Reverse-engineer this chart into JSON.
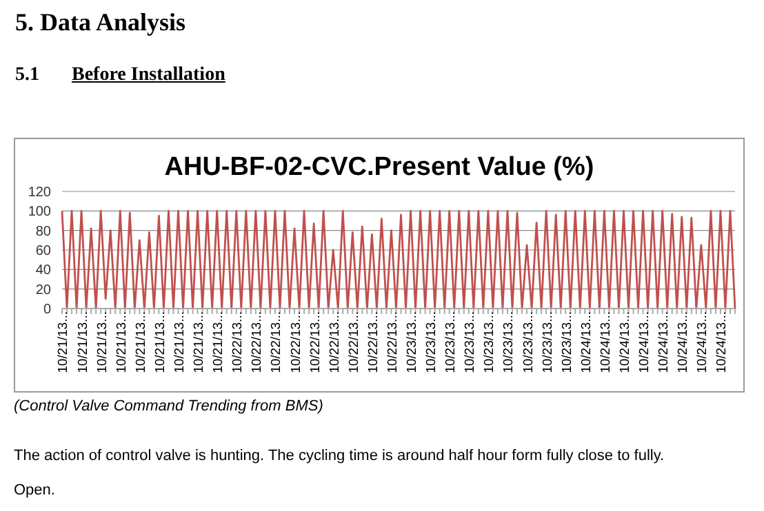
{
  "chart_data": {
    "type": "line",
    "title": "AHU-BF-02-CVC.Present Value (%)",
    "annotations": [
      "5. Data Analysis",
      "5.1",
      "Before Installation",
      "(Control Valve Command Trending from BMS)",
      "The action of control valve is hunting. The cycling time is around half hour form fully close to fully.",
      "Open."
    ],
    "categories": [
      "10/21/13...",
      null,
      null,
      null,
      "10/21/13...",
      null,
      null,
      null,
      "10/21/13...",
      null,
      null,
      null,
      "10/21/13...",
      null,
      null,
      null,
      "10/21/13...",
      null,
      null,
      null,
      "10/21/13...",
      null,
      null,
      null,
      "10/21/13...",
      null,
      null,
      null,
      "10/21/13...",
      null,
      null,
      null,
      "10/21/13...",
      null,
      null,
      null,
      "10/22/13...",
      null,
      null,
      null,
      "10/22/13...",
      null,
      null,
      null,
      "10/22/13...",
      null,
      null,
      null,
      "10/22/13...",
      null,
      null,
      null,
      "10/22/13...",
      null,
      null,
      null,
      "10/22/13...",
      null,
      null,
      null,
      "10/22/13...",
      null,
      null,
      null,
      "10/22/13...",
      null,
      null,
      null,
      "10/22/13...",
      null,
      null,
      null,
      "10/23/13...",
      null,
      null,
      null,
      "10/23/13...",
      null,
      null,
      null,
      "10/23/13...",
      null,
      null,
      null,
      "10/23/13...",
      null,
      null,
      null,
      "10/23/13...",
      null,
      null,
      null,
      "10/23/13...",
      null,
      null,
      null,
      "10/23/13...",
      null,
      null,
      null,
      "10/23/13...",
      null,
      null,
      null,
      "10/23/13...",
      null,
      null,
      null,
      "10/24/13...",
      null,
      null,
      null,
      "10/24/13...",
      null,
      null,
      null,
      "10/24/13...",
      null,
      null,
      null,
      "10/24/13...",
      null,
      null,
      null,
      "10/24/13...",
      null,
      null,
      null,
      "10/24/13...",
      null,
      null,
      null,
      "10/24/13...",
      null,
      null,
      null,
      "10/24/13...",
      null,
      null,
      null
    ],
    "series": [
      {
        "color": "#c0504d",
        "values": [
          100,
          0,
          100,
          0,
          100,
          0,
          82,
          0,
          100,
          10,
          80,
          0,
          100,
          0,
          98,
          0,
          70,
          0,
          78,
          0,
          95,
          0,
          100,
          0,
          100,
          0,
          100,
          0,
          100,
          0,
          100,
          0,
          100,
          0,
          100,
          0,
          100,
          0,
          100,
          0,
          100,
          0,
          100,
          0,
          100,
          0,
          100,
          0,
          82,
          0,
          100,
          0,
          87,
          0,
          100,
          0,
          60,
          0,
          100,
          0,
          78,
          0,
          84,
          0,
          76,
          0,
          92,
          0,
          80,
          0,
          96,
          0,
          100,
          0,
          100,
          0,
          100,
          0,
          100,
          0,
          100,
          0,
          100,
          0,
          100,
          0,
          100,
          0,
          100,
          0,
          100,
          0,
          100,
          0,
          98,
          0,
          65,
          0,
          88,
          0,
          100,
          0,
          96,
          0,
          100,
          0,
          100,
          0,
          100,
          0,
          100,
          0,
          100,
          0,
          100,
          0,
          100,
          0,
          100,
          0,
          100,
          0,
          100,
          0,
          100,
          0,
          97,
          0,
          94,
          0,
          93,
          0,
          65,
          0,
          100,
          0,
          100,
          0,
          100,
          0
        ]
      }
    ],
    "ylim": [
      0,
      120
    ],
    "yticks": [
      0,
      20,
      40,
      60,
      80,
      100,
      120
    ],
    "grid": "y",
    "marker": "none",
    "line_style": "solid"
  }
}
